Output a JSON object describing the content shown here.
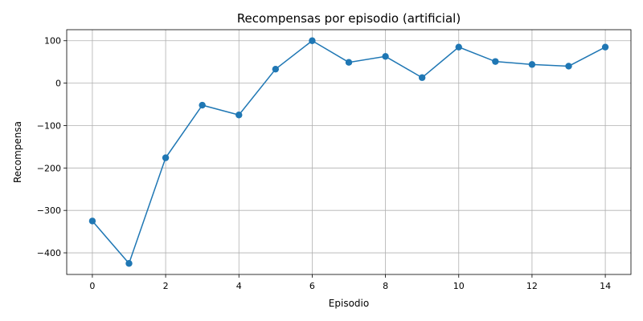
{
  "chart_data": {
    "type": "line",
    "title": "Recompensas por episodio (artificial)",
    "xlabel": "Episodio",
    "ylabel": "Recompensa",
    "x": [
      0,
      1,
      2,
      3,
      4,
      5,
      6,
      7,
      8,
      9,
      10,
      11,
      12,
      13,
      14
    ],
    "series": [
      {
        "values": [
          -325,
          -425,
          -176,
          -52,
          -75,
          33,
          100,
          49,
          63,
          13,
          85,
          51,
          44,
          40,
          85
        ],
        "color": "#1f77b4",
        "marker": "circle"
      }
    ],
    "xlim": [
      -0.7,
      14.7
    ],
    "ylim": [
      -451,
      126
    ],
    "xticks": [
      0,
      2,
      4,
      6,
      8,
      10,
      12,
      14
    ],
    "yticks": [
      -400,
      -300,
      -200,
      -100,
      0,
      100
    ],
    "xtick_labels": [
      "0",
      "2",
      "4",
      "6",
      "8",
      "10",
      "12",
      "14"
    ],
    "ytick_labels": [
      "−400",
      "−300",
      "−200",
      "−100",
      "0",
      "100"
    ],
    "grid": true
  }
}
